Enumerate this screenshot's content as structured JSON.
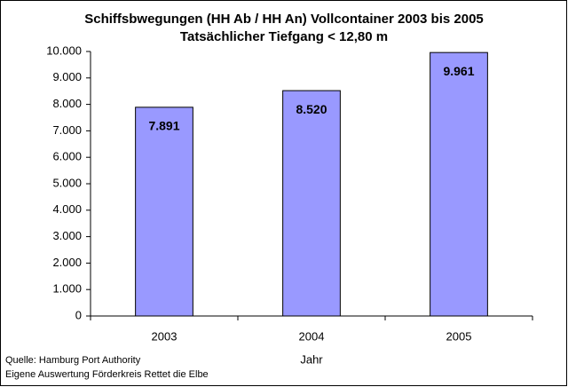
{
  "chart_data": {
    "type": "bar",
    "title": "Schiffsbwegungen (HH Ab / HH An) Vollcontainer  2003 bis 2005",
    "subtitle": "Tatsächlicher Tiefgang < 12,80 m",
    "x_label": "Jahr",
    "source": "Quelle: Hamburg Port Authority",
    "note": "Eigene Auswertung Förderkreis Rettet die Elbe",
    "categories": [
      "2003",
      "2004",
      "2005"
    ],
    "values": [
      7891,
      8520,
      9961
    ],
    "value_labels": [
      "7.891",
      "8.520",
      "9.961"
    ],
    "color": "#9999ff",
    "ylim": [
      0,
      10000
    ],
    "yticks": [
      0,
      {
        "value": 1000,
        "label": "1.000"
      },
      {
        "value": 2000,
        "label": "2.000"
      },
      {
        "value": 3000,
        "label": "3.000"
      },
      {
        "value": 4000,
        "label": "4.000"
      },
      {
        "value": 5000,
        "label": "5.000"
      },
      {
        "value": 6000,
        "label": "6.000"
      },
      {
        "value": 7000,
        "label": "7.000"
      },
      {
        "value": 8000,
        "label": "8.000"
      },
      {
        "value": 9000,
        "label": "9.000"
      },
      {
        "value": 10000,
        "label": "10.000"
      }
    ],
    "grid": false
  }
}
